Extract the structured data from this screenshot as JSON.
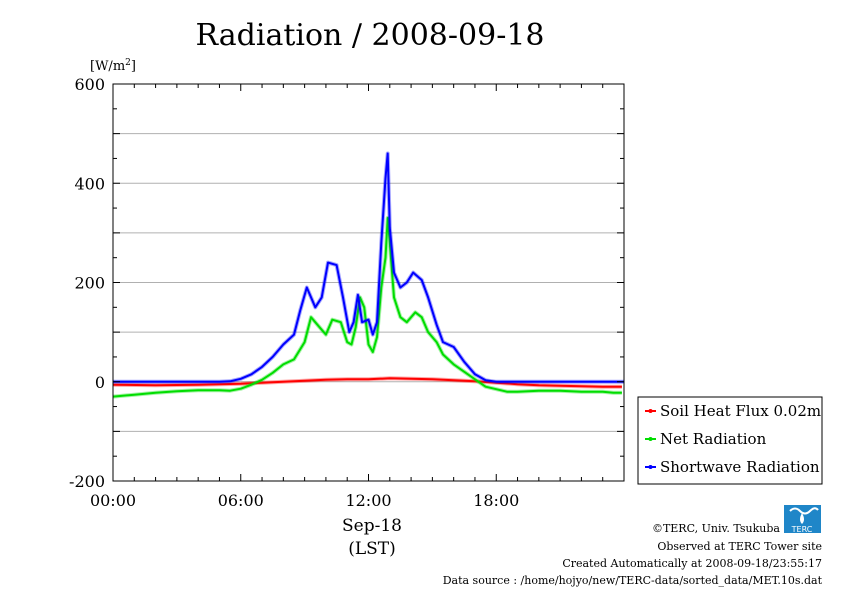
{
  "chart_data": {
    "type": "line",
    "title": "Radiation / 2008-09-18",
    "ylabel_base": "[W/m",
    "ylabel_sup": "2",
    "ylabel_end": "]",
    "ylim": [
      -200,
      600
    ],
    "yticks": [
      -200,
      0,
      200,
      400,
      600
    ],
    "y_grid": true,
    "x_range_hours": [
      0,
      24
    ],
    "xticks": [
      {
        "hour": 0,
        "label": "00:00"
      },
      {
        "hour": 6,
        "label": "06:00"
      },
      {
        "hour": 12,
        "label": "12:00"
      },
      {
        "hour": 18,
        "label": "18:00"
      }
    ],
    "x_date_label": "Sep-18",
    "x_unit_label": "(LST)",
    "legend_position": "right-bottom",
    "series": [
      {
        "name": "Soil Heat Flux 0.02m",
        "color": "#ff0000",
        "points": [
          [
            0,
            -6
          ],
          [
            2,
            -7
          ],
          [
            4,
            -6
          ],
          [
            6,
            -4
          ],
          [
            7,
            -2
          ],
          [
            8,
            0
          ],
          [
            9,
            2
          ],
          [
            10,
            4
          ],
          [
            11,
            5
          ],
          [
            12,
            5
          ],
          [
            12.5,
            6
          ],
          [
            13,
            7
          ],
          [
            14,
            6
          ],
          [
            15,
            5
          ],
          [
            16,
            3
          ],
          [
            17,
            1
          ],
          [
            18,
            -2
          ],
          [
            19,
            -5
          ],
          [
            20,
            -7
          ],
          [
            21,
            -8
          ],
          [
            22,
            -9
          ],
          [
            23,
            -10
          ],
          [
            23.9,
            -10
          ]
        ]
      },
      {
        "name": "Net Radiation",
        "color": "#00dd00",
        "points": [
          [
            0,
            -30
          ],
          [
            1,
            -26
          ],
          [
            2,
            -22
          ],
          [
            3,
            -19
          ],
          [
            4,
            -17
          ],
          [
            5,
            -17
          ],
          [
            5.5,
            -18
          ],
          [
            6,
            -14
          ],
          [
            6.5,
            -6
          ],
          [
            7,
            4
          ],
          [
            7.5,
            18
          ],
          [
            8,
            35
          ],
          [
            8.5,
            45
          ],
          [
            9,
            80
          ],
          [
            9.3,
            130
          ],
          [
            9.7,
            110
          ],
          [
            10,
            95
          ],
          [
            10.3,
            125
          ],
          [
            10.7,
            120
          ],
          [
            11,
            80
          ],
          [
            11.2,
            75
          ],
          [
            11.4,
            110
          ],
          [
            11.6,
            170
          ],
          [
            11.8,
            150
          ],
          [
            12,
            75
          ],
          [
            12.2,
            60
          ],
          [
            12.4,
            90
          ],
          [
            12.6,
            190
          ],
          [
            12.8,
            250
          ],
          [
            12.9,
            330
          ],
          [
            13,
            280
          ],
          [
            13.2,
            170
          ],
          [
            13.5,
            130
          ],
          [
            13.8,
            120
          ],
          [
            14.2,
            140
          ],
          [
            14.5,
            130
          ],
          [
            14.8,
            100
          ],
          [
            15.2,
            80
          ],
          [
            15.5,
            55
          ],
          [
            16,
            35
          ],
          [
            16.5,
            20
          ],
          [
            17,
            5
          ],
          [
            17.5,
            -10
          ],
          [
            18,
            -15
          ],
          [
            18.5,
            -20
          ],
          [
            19,
            -20
          ],
          [
            20,
            -18
          ],
          [
            21,
            -18
          ],
          [
            22,
            -20
          ],
          [
            23,
            -20
          ],
          [
            23.5,
            -22
          ],
          [
            23.9,
            -22
          ]
        ]
      },
      {
        "name": "Shortwave Radiation",
        "color": "#0000ff",
        "points": [
          [
            0,
            0
          ],
          [
            5,
            0
          ],
          [
            5.5,
            1
          ],
          [
            6,
            6
          ],
          [
            6.5,
            15
          ],
          [
            7,
            30
          ],
          [
            7.5,
            50
          ],
          [
            8,
            75
          ],
          [
            8.5,
            95
          ],
          [
            8.8,
            145
          ],
          [
            9.1,
            190
          ],
          [
            9.5,
            150
          ],
          [
            9.8,
            170
          ],
          [
            10.1,
            240
          ],
          [
            10.5,
            235
          ],
          [
            10.8,
            170
          ],
          [
            11.1,
            100
          ],
          [
            11.3,
            120
          ],
          [
            11.5,
            175
          ],
          [
            11.7,
            120
          ],
          [
            12,
            125
          ],
          [
            12.2,
            95
          ],
          [
            12.4,
            120
          ],
          [
            12.6,
            280
          ],
          [
            12.8,
            410
          ],
          [
            12.9,
            460
          ],
          [
            13,
            310
          ],
          [
            13.2,
            220
          ],
          [
            13.5,
            190
          ],
          [
            13.8,
            200
          ],
          [
            14.1,
            220
          ],
          [
            14.5,
            205
          ],
          [
            14.8,
            170
          ],
          [
            15.2,
            115
          ],
          [
            15.5,
            80
          ],
          [
            16,
            70
          ],
          [
            16.5,
            40
          ],
          [
            17,
            15
          ],
          [
            17.5,
            3
          ],
          [
            18,
            0
          ],
          [
            24,
            0
          ]
        ]
      }
    ]
  },
  "credits": {
    "copyright": "©TERC, Univ. Tsukuba",
    "site": "Observed at TERC Tower site",
    "created": "Created Automatically at 2008-09-18/23:55:17",
    "source": "Data source : /home/hojyo/new/TERC-data/sorted_data/MET.10s.dat",
    "logo_text": "TERC"
  }
}
